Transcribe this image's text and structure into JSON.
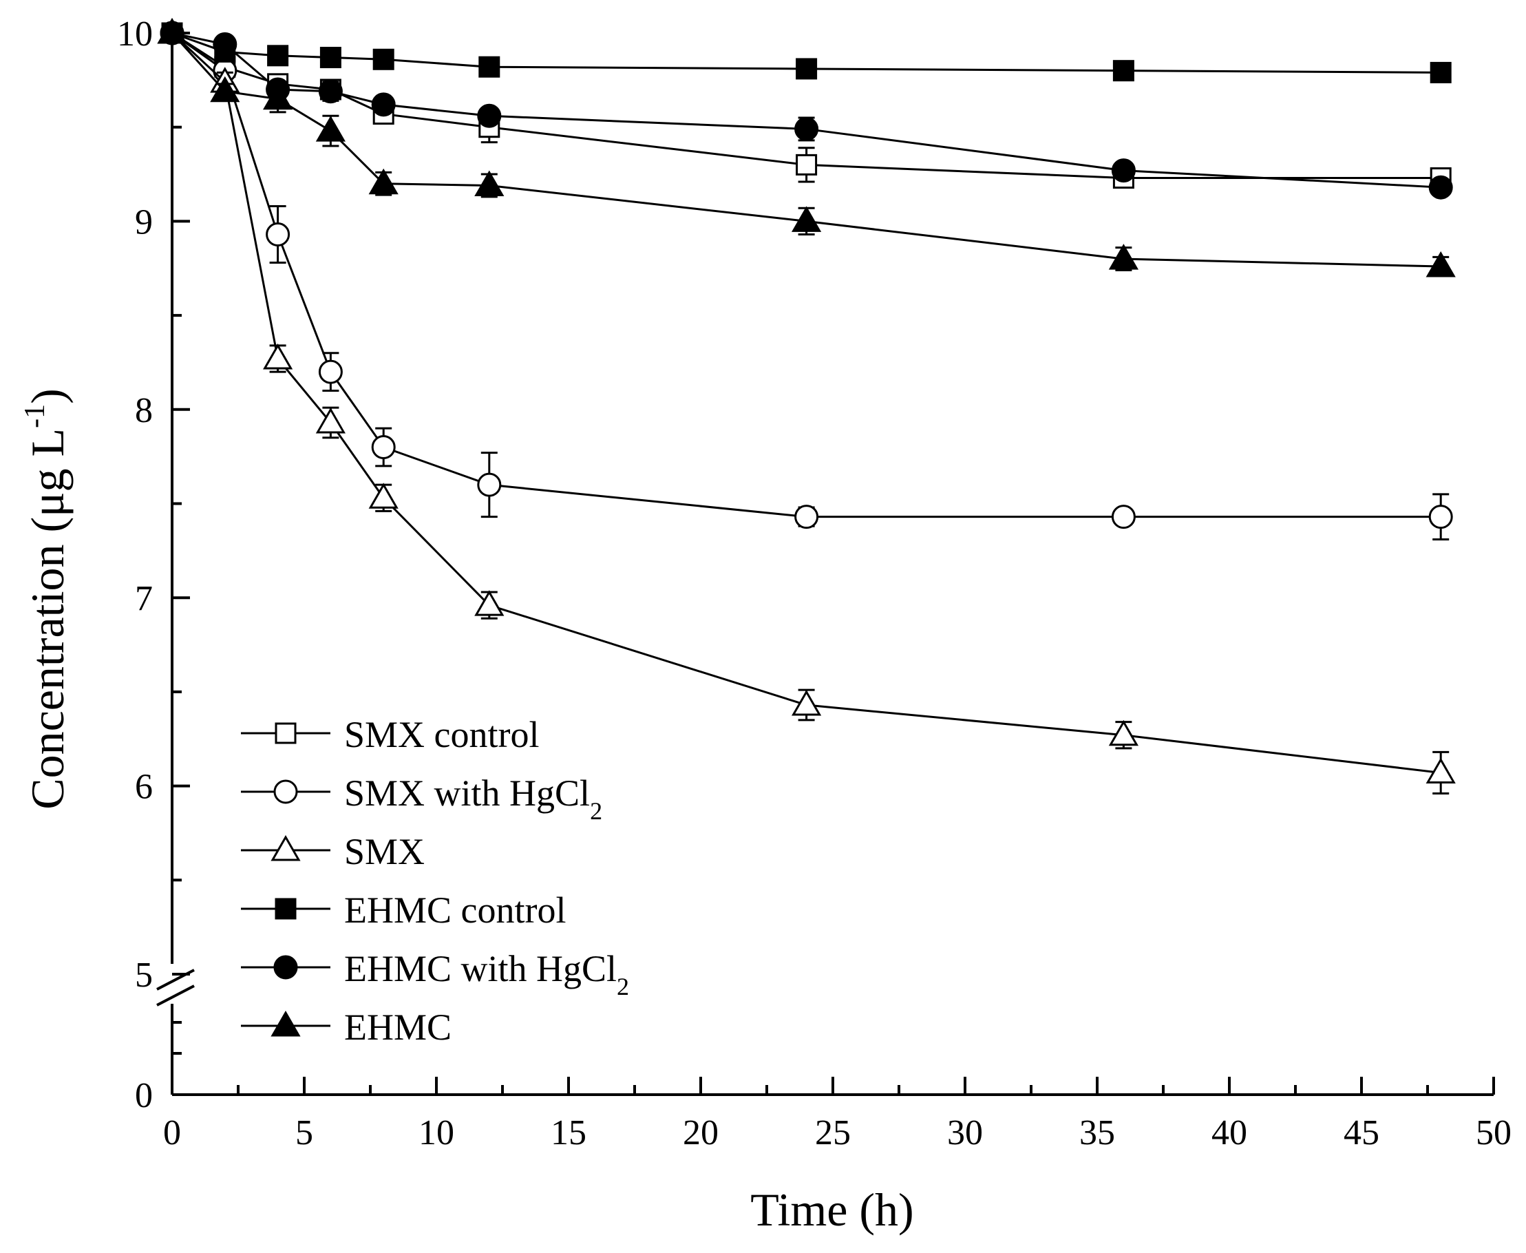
{
  "chart_data": {
    "type": "line",
    "title": "",
    "xlabel": "Time (h)",
    "ylabel": "Concentration (μg L",
    "ylabel_sup": "-1",
    "ylabel_close": ")",
    "xlim": [
      0,
      50
    ],
    "x_ticks": [
      0,
      5,
      10,
      15,
      20,
      25,
      30,
      35,
      40,
      45,
      50
    ],
    "x_tick_labels": [
      "0",
      "5",
      "10",
      "15",
      "20",
      "25",
      "30",
      "35",
      "40",
      "45",
      "50"
    ],
    "y_axis_break": "between 0 and 5",
    "y_ticks_lower": [
      0
    ],
    "y_ticks_upper": [
      5,
      6,
      7,
      8,
      9,
      10
    ],
    "y_tick_labels": [
      "0",
      "5",
      "6",
      "7",
      "8",
      "9",
      "10"
    ],
    "legend_position": "bottom-left",
    "series": [
      {
        "name": "SMX control",
        "label_main": "SMX control",
        "label_sub": "",
        "marker": "square",
        "filled": false,
        "x": [
          0,
          2,
          4,
          6,
          8,
          12,
          24,
          36,
          48
        ],
        "y": [
          10.0,
          9.82,
          9.73,
          9.7,
          9.57,
          9.5,
          9.3,
          9.23,
          9.23
        ],
        "err": [
          0,
          0.04,
          0.04,
          0.05,
          0.03,
          0.08,
          0.09,
          0.03,
          0.02
        ]
      },
      {
        "name": "SMX with HgCl2",
        "label_main": "SMX with HgCl",
        "label_sub": "2",
        "marker": "circle",
        "filled": false,
        "x": [
          0,
          2,
          4,
          6,
          8,
          12,
          24,
          36,
          48
        ],
        "y": [
          10.0,
          9.8,
          8.93,
          8.2,
          7.8,
          7.6,
          7.43,
          7.43,
          7.43
        ],
        "err": [
          0,
          0.03,
          0.15,
          0.1,
          0.1,
          0.17,
          0.05,
          0.04,
          0.12
        ]
      },
      {
        "name": "SMX",
        "label_main": "SMX",
        "label_sub": "",
        "marker": "triangle",
        "filled": false,
        "x": [
          0,
          2,
          4,
          6,
          8,
          12,
          24,
          36,
          48
        ],
        "y": [
          10.0,
          9.74,
          8.27,
          7.93,
          7.53,
          6.96,
          6.43,
          6.27,
          6.07
        ],
        "err": [
          0,
          0.05,
          0.07,
          0.08,
          0.07,
          0.07,
          0.08,
          0.07,
          0.11
        ]
      },
      {
        "name": "EHMC control",
        "label_main": "EHMC control",
        "label_sub": "",
        "marker": "square",
        "filled": true,
        "x": [
          0,
          2,
          4,
          6,
          8,
          12,
          24,
          36,
          48
        ],
        "y": [
          10.0,
          9.9,
          9.88,
          9.87,
          9.86,
          9.82,
          9.81,
          9.8,
          9.79
        ],
        "err": [
          0,
          0.02,
          0.02,
          0.02,
          0.02,
          0.02,
          0.02,
          0.02,
          0.02
        ]
      },
      {
        "name": "EHMC with HgCl2",
        "label_main": "EHMC with HgCl",
        "label_sub": "2",
        "marker": "circle",
        "filled": true,
        "x": [
          0,
          2,
          4,
          6,
          8,
          12,
          24,
          36,
          48
        ],
        "y": [
          10.0,
          9.94,
          9.7,
          9.69,
          9.62,
          9.56,
          9.49,
          9.27,
          9.18
        ],
        "err": [
          0,
          0.03,
          0.04,
          0.05,
          0.03,
          0.03,
          0.06,
          0.04,
          0.04
        ]
      },
      {
        "name": "EHMC",
        "label_main": "EHMC",
        "label_sub": "",
        "marker": "triangle",
        "filled": true,
        "x": [
          0,
          2,
          4,
          6,
          8,
          12,
          24,
          36,
          48
        ],
        "y": [
          10.0,
          9.69,
          9.65,
          9.48,
          9.2,
          9.19,
          9.0,
          8.8,
          8.76
        ],
        "err": [
          0,
          0.04,
          0.07,
          0.08,
          0.06,
          0.06,
          0.07,
          0.06,
          0.05
        ]
      }
    ]
  }
}
